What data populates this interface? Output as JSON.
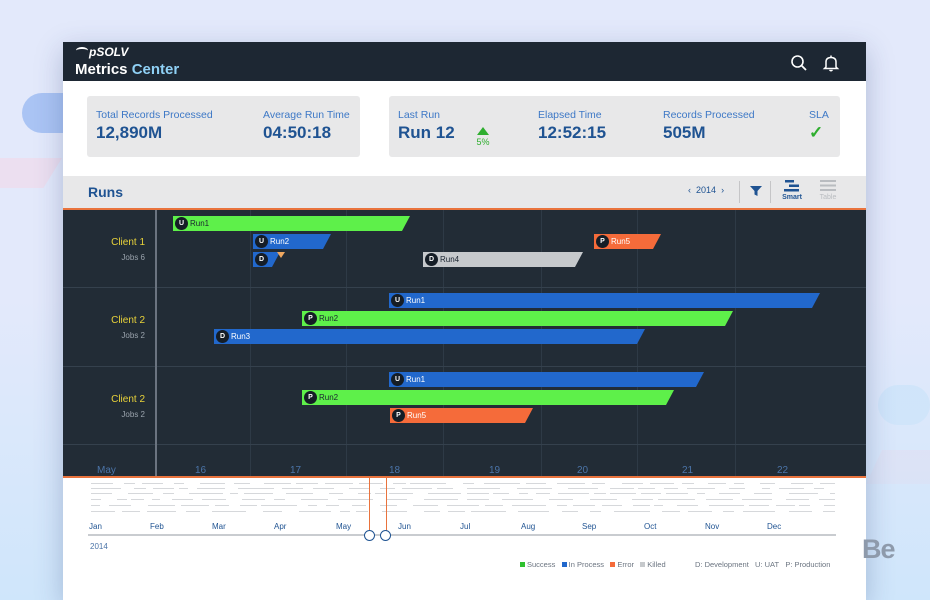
{
  "app": {
    "brand": "pSOLV",
    "title_main": "Metrics",
    "title_accent": "Center"
  },
  "stats": {
    "card1": [
      {
        "label": "Total Records Processed",
        "value": "12,890M"
      },
      {
        "label": "Average Run Time",
        "value": "04:50:18"
      }
    ],
    "card2": [
      {
        "label": "Last Run",
        "value": "Run 12",
        "delta": "5%"
      },
      {
        "label": "Elapsed Time",
        "value": "12:52:15"
      },
      {
        "label": "Records Processed",
        "value": "505M"
      },
      {
        "label": "SLA",
        "value": "✓"
      }
    ]
  },
  "runs": {
    "title": "Runs",
    "year": "2014",
    "smart_label": "Smart",
    "table_label": "Table"
  },
  "gantt": {
    "groups": [
      {
        "name": "Client 1",
        "jobs": "Jobs 6"
      },
      {
        "name": "Client 2",
        "jobs": "Jobs 2"
      },
      {
        "name": "Client 2",
        "jobs": "Jobs 2"
      }
    ],
    "bars": [
      {
        "badge": "U",
        "label": "Run1"
      },
      {
        "badge": "U",
        "label": "Run2"
      },
      {
        "badge": "P",
        "label": "Run5"
      },
      {
        "badge": "D",
        "label": ""
      },
      {
        "badge": "D",
        "label": "Run4"
      },
      {
        "badge": "U",
        "label": "Run1"
      },
      {
        "badge": "P",
        "label": "Run2"
      },
      {
        "badge": "D",
        "label": "Run3"
      },
      {
        "badge": "U",
        "label": "Run1"
      },
      {
        "badge": "P",
        "label": "Run2"
      },
      {
        "badge": "P",
        "label": "Run5"
      }
    ],
    "axis": [
      "May",
      "16",
      "17",
      "18",
      "19",
      "20",
      "21",
      "22"
    ]
  },
  "overview": {
    "months": [
      "Jan",
      "Feb",
      "Mar",
      "Apr",
      "May",
      "Jun",
      "Jul",
      "Aug",
      "Sep",
      "Oct",
      "Nov",
      "Dec"
    ],
    "year": "2014"
  },
  "legend": {
    "status": [
      "Success",
      "In Process",
      "Error",
      "Killed"
    ],
    "types": [
      "D: Development",
      "U: UAT",
      "P: Production"
    ]
  },
  "colors": {
    "success": "#5ef04a",
    "in_process": "#2268cc",
    "error": "#f56b3a",
    "killed": "#c6c9cc",
    "header_bg": "#1d2733",
    "accent": "#1f5392",
    "sla": "#2fae2f"
  },
  "watermark": "Be"
}
